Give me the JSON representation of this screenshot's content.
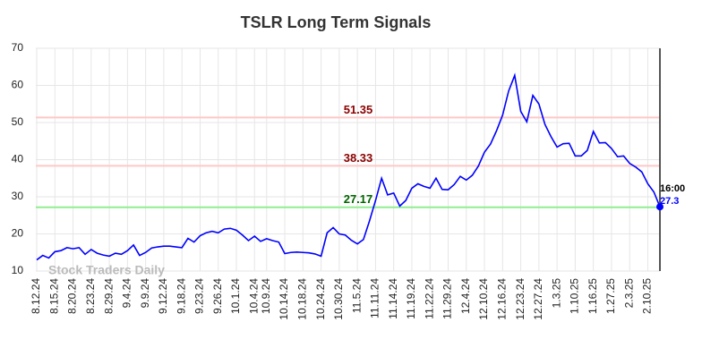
{
  "chart_data": {
    "type": "line",
    "title": "TSLR Long Term Signals",
    "watermark": "Stock Traders Daily",
    "annotation": "16:00",
    "categories": [
      "8.12.24",
      null,
      null,
      "8.15.24",
      null,
      null,
      "8.20.24",
      null,
      null,
      "8.23.24",
      null,
      null,
      "8.29.24",
      null,
      null,
      "9.4.24",
      null,
      null,
      "9.9.24",
      null,
      null,
      "9.12.24",
      null,
      null,
      "9.18.24",
      null,
      null,
      "9.23.24",
      null,
      null,
      "9.26.24",
      null,
      null,
      "10.1.24",
      null,
      null,
      "10.4.24",
      null,
      "10.9.24",
      null,
      null,
      "10.14.24",
      null,
      null,
      "10.18.24",
      null,
      null,
      "10.24.24",
      null,
      null,
      "10.30.24",
      null,
      null,
      "11.5.24",
      null,
      null,
      "11.11.24",
      null,
      null,
      "11.14.24",
      null,
      null,
      "11.19.24",
      null,
      null,
      "11.22.24",
      null,
      null,
      "11.29.24",
      null,
      null,
      "12.4.24",
      null,
      null,
      "12.10.24",
      null,
      null,
      "12.16.24",
      null,
      null,
      "12.23.24",
      null,
      null,
      "12.27.24",
      null,
      null,
      "1.3.25",
      null,
      null,
      "1.10.25",
      null,
      null,
      "1.16.25",
      null,
      null,
      "1.27.25",
      null,
      null,
      "2.3.25",
      null,
      null,
      "2.10.25",
      null,
      null
    ],
    "series": [
      {
        "color": "#0000ff",
        "values": [
          13,
          14.2,
          13.5,
          15.2,
          15.5,
          16.3,
          16,
          16.3,
          14.5,
          15.8,
          14.8,
          14.3,
          14,
          14.8,
          14.5,
          15.5,
          17,
          14.2,
          15,
          16.2,
          16.5,
          16.7,
          16.7,
          16.5,
          16.3,
          18.8,
          17.8,
          19.5,
          20.3,
          20.7,
          20.3,
          21.3,
          21.5,
          21,
          19.7,
          18.2,
          19.4,
          18,
          18.7,
          18.2,
          17.8,
          14.7,
          15,
          15.1,
          15,
          14.9,
          14.6,
          14,
          20.3,
          21.7,
          20,
          19.7,
          18.3,
          17.3,
          18.5,
          23.5,
          29,
          35,
          30.5,
          31,
          27.5,
          29,
          32.3,
          33.5,
          32.8,
          32.3,
          35,
          32,
          31.9,
          33.3,
          35.5,
          34.5,
          35.8,
          38.3,
          42,
          44.2,
          47.8,
          52,
          58.5,
          62.7,
          53,
          50.2,
          57.3,
          55,
          49.5,
          46.2,
          43.4,
          44.3,
          44.4,
          41,
          41,
          42.5,
          47.6,
          44.5,
          44.6,
          43,
          40.8,
          41,
          39,
          38,
          36.7,
          33.5,
          31.3,
          27.3
        ]
      }
    ],
    "reference_lines": [
      {
        "value": 51.35,
        "color": "#ffc8c8",
        "label_color": "#8b0000"
      },
      {
        "value": 38.33,
        "color": "#ffc8c8",
        "label_color": "#8b0000"
      },
      {
        "value": 27.17,
        "color": "#90ee90",
        "label_color": "#006400"
      }
    ],
    "ylim": [
      10,
      70
    ],
    "yticks": [
      10,
      20,
      30,
      40,
      50,
      60,
      70
    ],
    "grid": true
  }
}
